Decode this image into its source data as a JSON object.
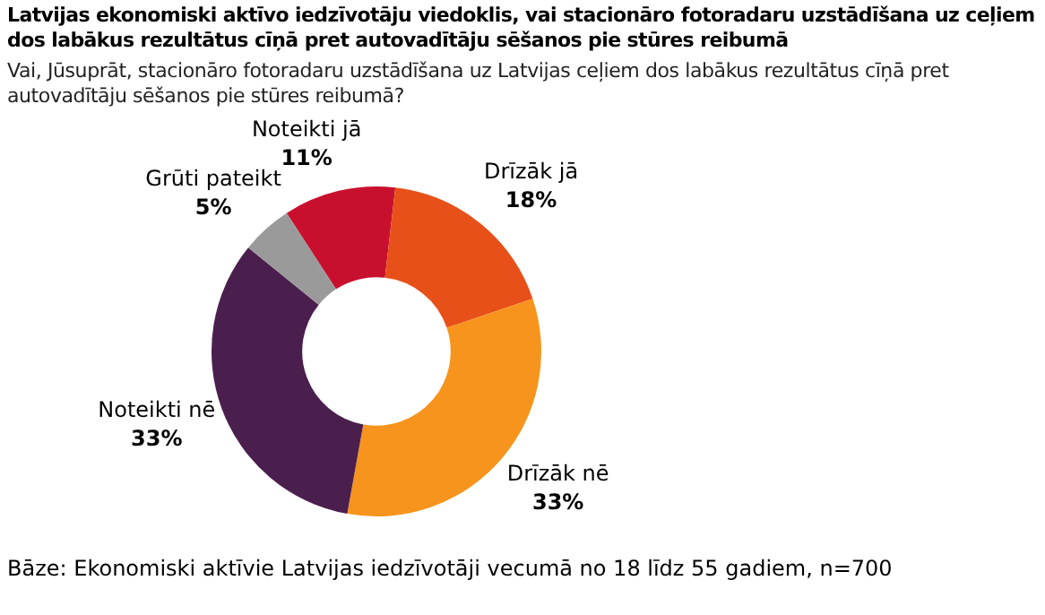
{
  "chart_data": {
    "type": "donut",
    "title": "Latvijas ekonomiski aktīvo iedzīvotāju viedoklis, vai stacionāro fotoradaru uzstādīšana uz ceļiem dos labākus rezultātus cīņā pret autovadītāju sēšanos pie stūres reibumā",
    "subtitle": "Vai, Jūsuprāt, stacionāro fotoradaru uzstādīšana uz Latvijas ceļiem dos labākus rezultātus cīņā pret autovadītāju sēšanos pie stūres reibumā?",
    "categories": [
      "Noteikti jā",
      "Drīzāk jā",
      "Drīzāk nē",
      "Noteikti nē",
      "Grūti pateikt"
    ],
    "values": [
      11,
      18,
      33,
      33,
      5
    ],
    "value_labels": [
      "11%",
      "18%",
      "33%",
      "33%",
      "5%"
    ],
    "colors": [
      "#c8102e",
      "#e8501a",
      "#f7941d",
      "#4b1f4d",
      "#9a9a9a"
    ],
    "legend": false,
    "annotations": [
      "Bāze: Ekonomiski aktīvie Latvijas iedzīvotāji vecumā no 18 līdz 55 gadiem, n=700"
    ]
  }
}
